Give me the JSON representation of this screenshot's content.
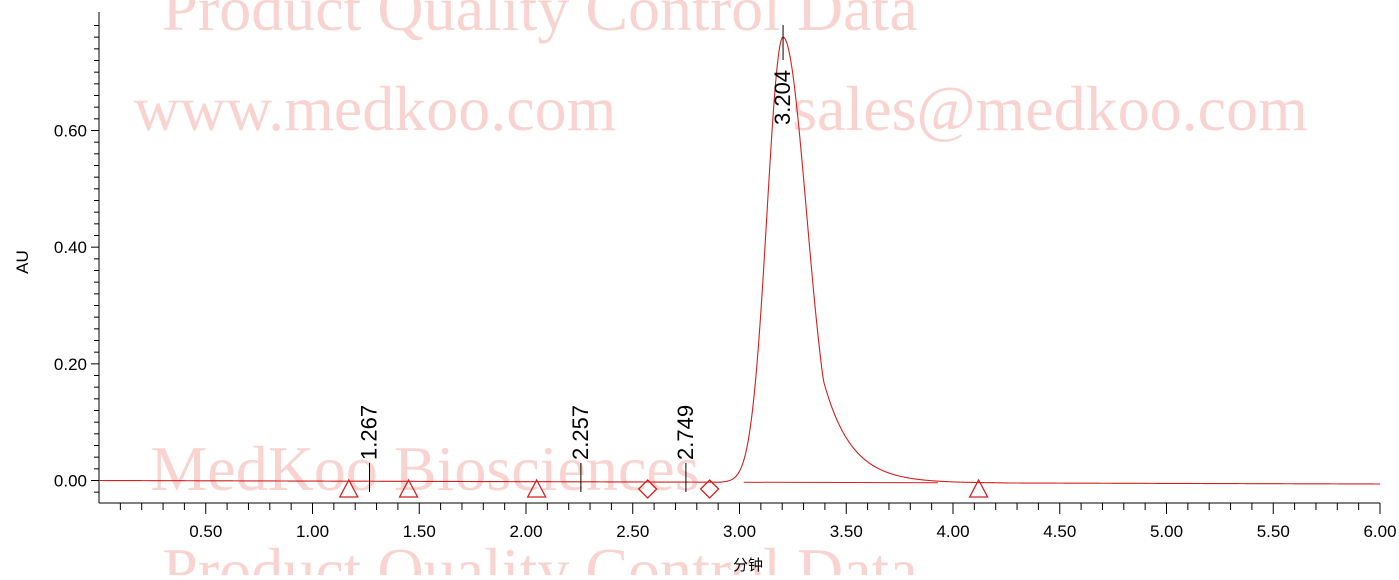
{
  "watermarks": [
    "Product Quality Control Data",
    "www.medkoo.com",
    "sales@medkoo.com",
    "MedKoo Biosciences",
    "Product Quality Control Data"
  ],
  "chart_data": {
    "type": "line",
    "title": "",
    "xlabel": "分钟",
    "ylabel": "AU",
    "xlim": [
      0.0,
      6.0
    ],
    "ylim": [
      -0.035,
      0.79
    ],
    "x_ticks": [
      "0.50",
      "1.00",
      "1.50",
      "2.00",
      "2.50",
      "3.00",
      "3.50",
      "4.00",
      "4.50",
      "5.00",
      "5.50",
      "6.00"
    ],
    "y_ticks": [
      "0.00",
      "0.20",
      "0.40",
      "0.60"
    ],
    "grid": false,
    "series_color": "#d32020",
    "baseline": {
      "x": [
        0.0,
        6.0
      ],
      "y": [
        0.0,
        -0.006
      ]
    },
    "peak": {
      "apex_x": 3.204,
      "apex_y": 0.76,
      "start_x": 3.02,
      "end_x": 3.93
    },
    "peak_labels": [
      {
        "label": "1.267",
        "x": 1.267
      },
      {
        "label": "2.257",
        "x": 2.257
      },
      {
        "label": "2.749",
        "x": 2.749
      },
      {
        "label": "3.204",
        "x": 3.204
      }
    ],
    "integration_markers": [
      {
        "x": 1.17,
        "shape": "triangle"
      },
      {
        "x": 1.45,
        "shape": "triangle"
      },
      {
        "x": 2.05,
        "shape": "triangle"
      },
      {
        "x": 2.57,
        "shape": "diamond"
      },
      {
        "x": 2.86,
        "shape": "diamond"
      },
      {
        "x": 4.12,
        "shape": "triangle"
      }
    ]
  }
}
